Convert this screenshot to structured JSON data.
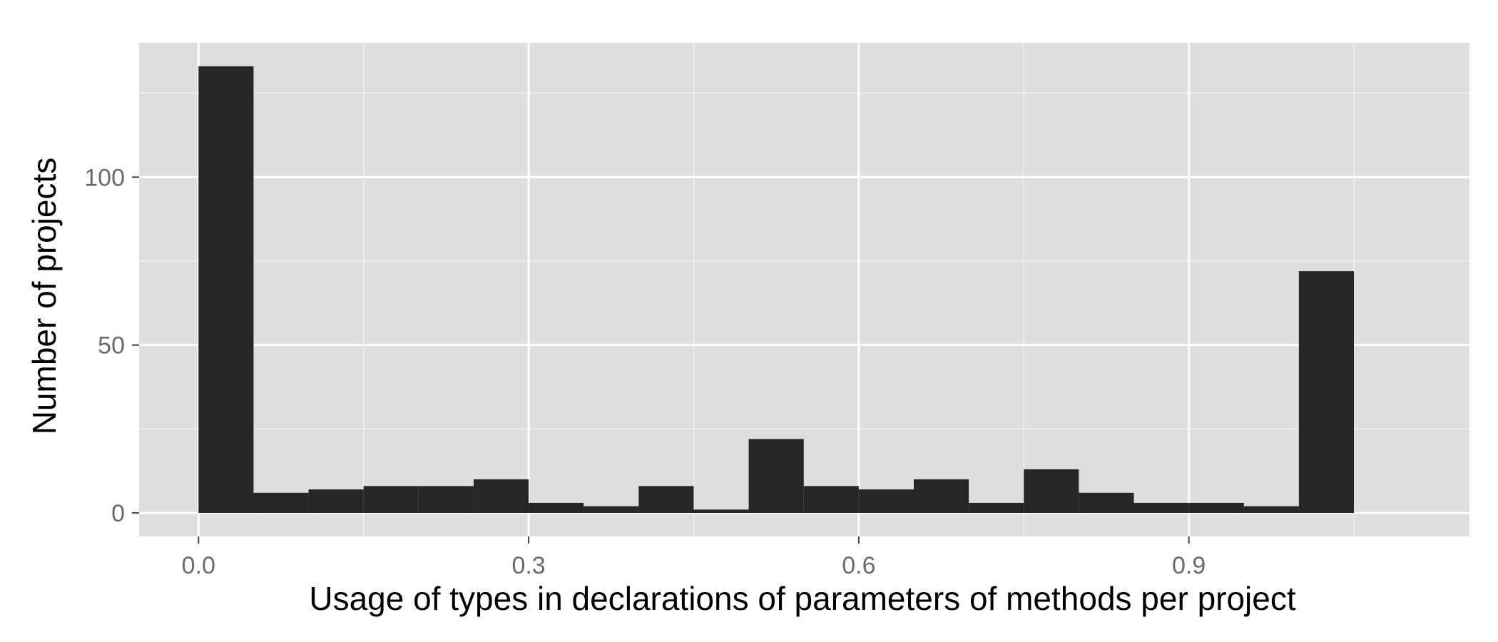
{
  "chart_data": {
    "type": "bar",
    "subtype": "histogram",
    "title": "",
    "xlabel": "Usage of types in declarations of parameters of methods per project",
    "ylabel": "Number of projects",
    "xlim": [
      -0.054,
      1.155
    ],
    "ylim": [
      -7,
      140
    ],
    "bin_width": 0.05,
    "bins": [
      {
        "x0": 0.0,
        "x1": 0.05,
        "count": 133
      },
      {
        "x0": 0.05,
        "x1": 0.1,
        "count": 6
      },
      {
        "x0": 0.1,
        "x1": 0.15,
        "count": 7
      },
      {
        "x0": 0.15,
        "x1": 0.2,
        "count": 8
      },
      {
        "x0": 0.2,
        "x1": 0.25,
        "count": 8
      },
      {
        "x0": 0.25,
        "x1": 0.3,
        "count": 10
      },
      {
        "x0": 0.3,
        "x1": 0.35,
        "count": 3
      },
      {
        "x0": 0.35,
        "x1": 0.4,
        "count": 2
      },
      {
        "x0": 0.4,
        "x1": 0.45,
        "count": 8
      },
      {
        "x0": 0.45,
        "x1": 0.5,
        "count": 1
      },
      {
        "x0": 0.5,
        "x1": 0.55,
        "count": 22
      },
      {
        "x0": 0.55,
        "x1": 0.6,
        "count": 8
      },
      {
        "x0": 0.6,
        "x1": 0.65,
        "count": 7
      },
      {
        "x0": 0.65,
        "x1": 0.7,
        "count": 10
      },
      {
        "x0": 0.7,
        "x1": 0.75,
        "count": 3
      },
      {
        "x0": 0.75,
        "x1": 0.8,
        "count": 13
      },
      {
        "x0": 0.8,
        "x1": 0.85,
        "count": 6
      },
      {
        "x0": 0.85,
        "x1": 0.9,
        "count": 3
      },
      {
        "x0": 0.9,
        "x1": 0.95,
        "count": 3
      },
      {
        "x0": 0.95,
        "x1": 1.0,
        "count": 2
      },
      {
        "x0": 1.0,
        "x1": 1.05,
        "count": 72
      }
    ],
    "x_ticks": [
      {
        "value": 0.0,
        "label": "0.0"
      },
      {
        "value": 0.3,
        "label": "0.3"
      },
      {
        "value": 0.6,
        "label": "0.6"
      },
      {
        "value": 0.9,
        "label": "0.9"
      }
    ],
    "x_minor_gridlines": [
      0.15,
      0.45,
      0.75,
      1.05
    ],
    "y_ticks": [
      {
        "value": 0,
        "label": "0"
      },
      {
        "value": 50,
        "label": "50"
      },
      {
        "value": 100,
        "label": "100"
      }
    ],
    "y_minor_gridlines": [
      25,
      75,
      125
    ],
    "grid": true,
    "legend": "none",
    "colors": {
      "bar": "#262626",
      "panel": "#dedede",
      "grid_major": "#ffffff",
      "grid_minor": "#efefef",
      "tick_label": "#6b6b6b",
      "axis_title": "#000000",
      "tick_mark": "#444444"
    }
  }
}
